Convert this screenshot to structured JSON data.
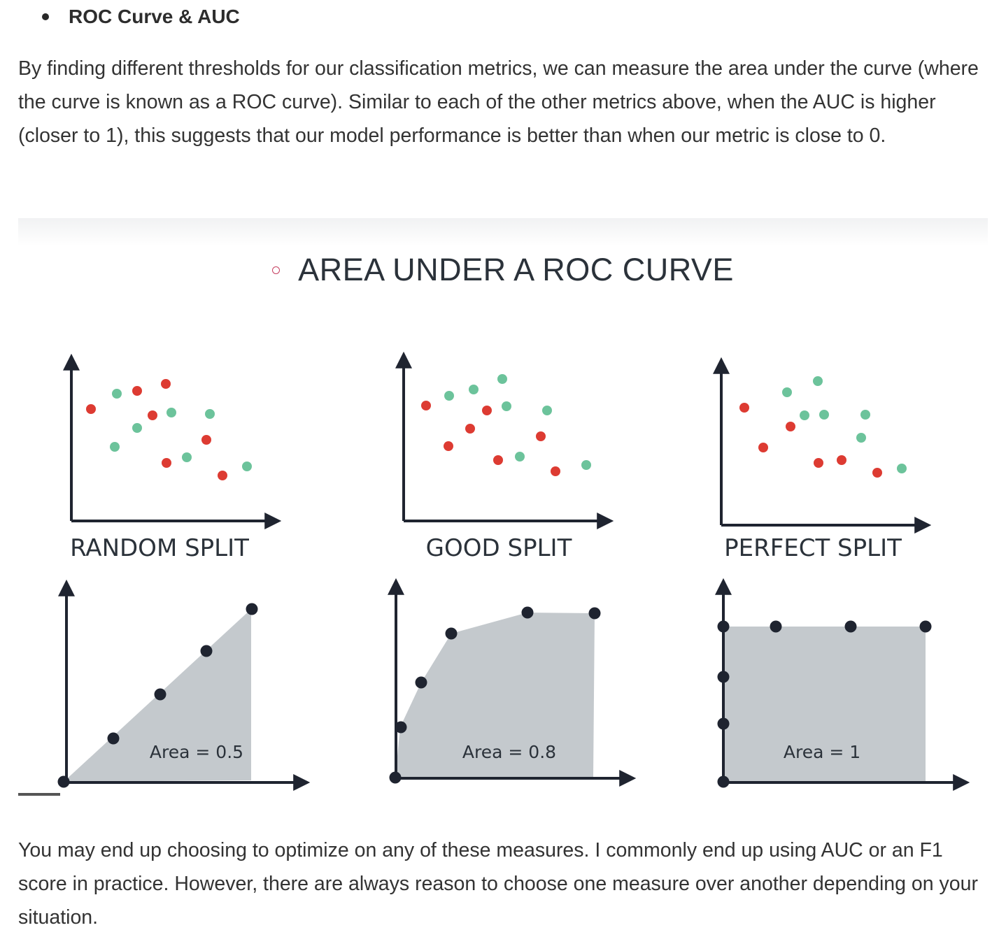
{
  "bullet": {
    "title": "ROC Curve & AUC"
  },
  "paragraph_1": "By finding different thresholds for our classification metrics, we can measure the area under the curve (where the curve is known as a ROC curve). Similar to each of the other metrics above, when the AUC is higher (closer to 1), this suggests that our model performance is better than when our metric is close to 0.",
  "figure": {
    "title": "AREA UNDER A ROC CURVE",
    "colors": {
      "positive": "#6cc39b",
      "negative": "#dd3b32",
      "area": "#c4c9cd",
      "axis": "#1f2430"
    },
    "panels": [
      {
        "split_label": "RANDOM SPLIT",
        "area_label": "Area = 0.5"
      },
      {
        "split_label": "GOOD SPLIT",
        "area_label": "Area = 0.8"
      },
      {
        "split_label": "PERFECT SPLIT",
        "area_label": "Area = 1"
      }
    ]
  },
  "paragraph_2": "You may end up choosing to optimize on any of these measures. I commonly end up using AUC or an F1 score in practice. However, there are always reason to choose one measure over another depending on your situation."
}
